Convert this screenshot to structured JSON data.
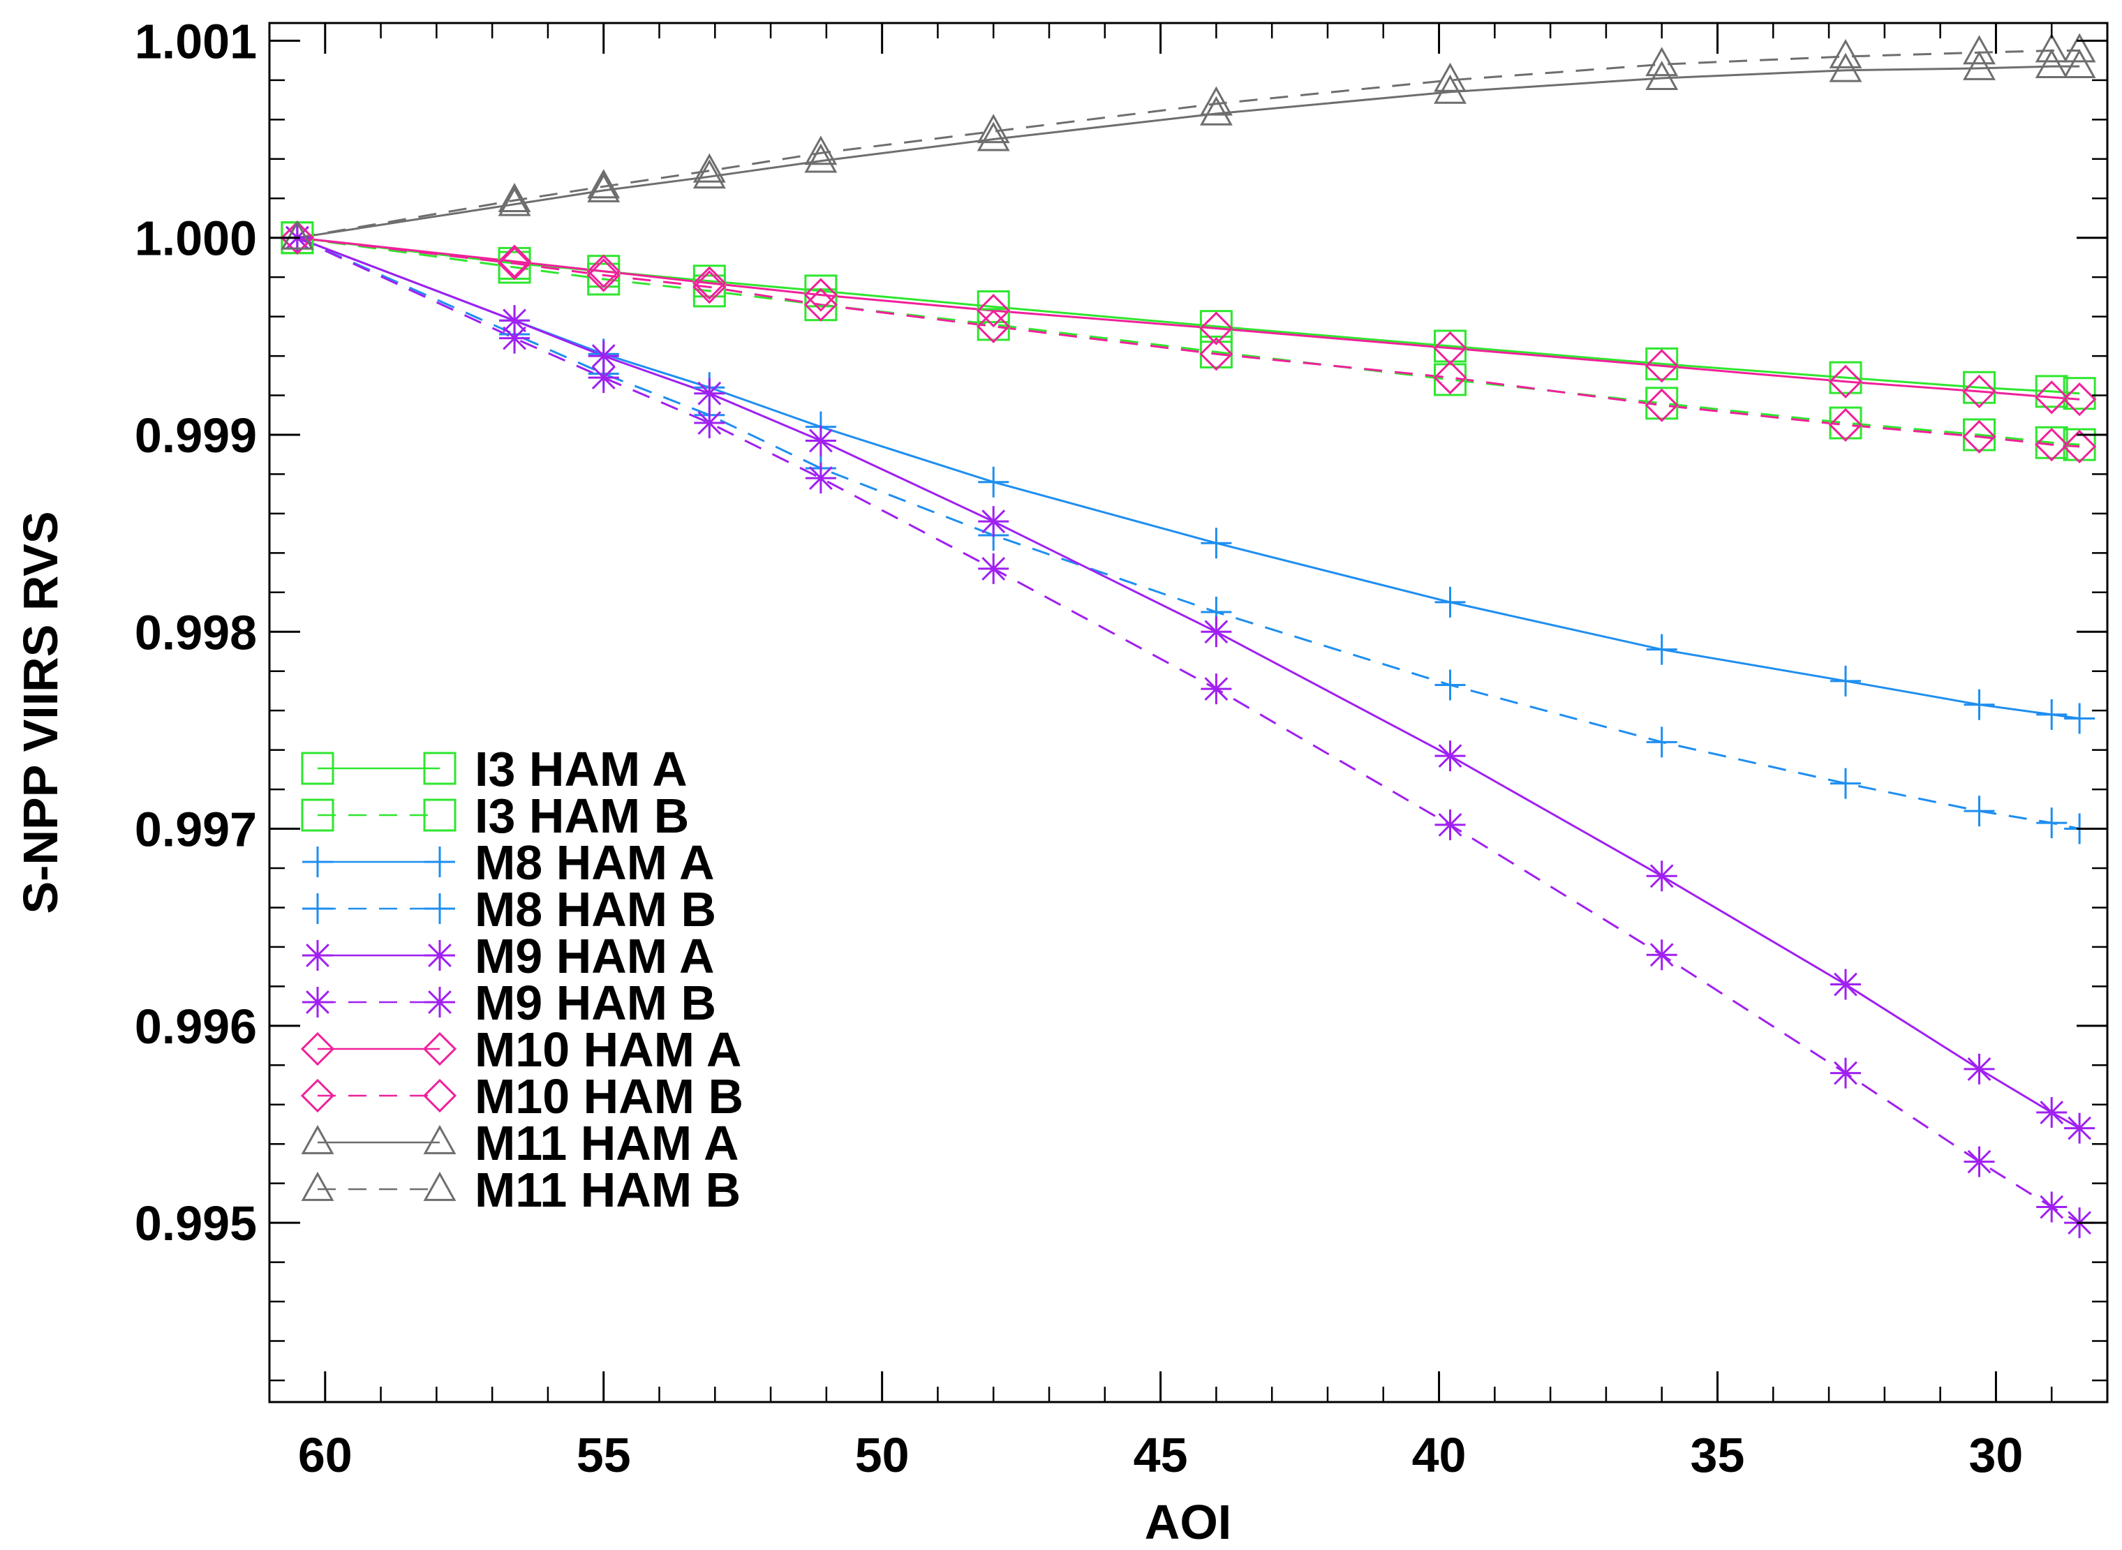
{
  "chart_data": {
    "type": "line",
    "title": "",
    "xlabel": "AOI",
    "ylabel": "S-NPP VIIRS RVS",
    "xlim": [
      61,
      28
    ],
    "ylim": [
      0.99409,
      1.00109
    ],
    "x_ticks": [
      60,
      55,
      50,
      45,
      40,
      35,
      30
    ],
    "x_tick_labels": [
      "60",
      "55",
      "50",
      "45",
      "40",
      "35",
      "30"
    ],
    "y_ticks": [
      0.995,
      0.996,
      0.997,
      0.998,
      0.999,
      1.0,
      1.001
    ],
    "y_tick_labels": [
      "0.995",
      "0.996",
      "0.997",
      "0.998",
      "0.999",
      "1.000",
      "1.001"
    ],
    "grid": false,
    "legend_position": "center-left",
    "x": [
      60.5,
      56.6,
      55.0,
      53.1,
      51.1,
      48.0,
      44.0,
      39.8,
      36.0,
      32.7,
      30.3,
      29.0,
      28.5
    ],
    "series": [
      {
        "name": "I3 HAM A",
        "color": "#2ee62e",
        "dash": "solid",
        "marker": "square",
        "values": [
          1.0,
          0.99987,
          0.99983,
          0.99978,
          0.99973,
          0.99965,
          0.99955,
          0.99945,
          0.99936,
          0.99929,
          0.99924,
          0.99922,
          0.99921
        ]
      },
      {
        "name": "I3 HAM B",
        "color": "#2ee62e",
        "dash": "dashed",
        "marker": "square",
        "values": [
          1.0,
          0.99985,
          0.99979,
          0.99973,
          0.99966,
          0.99956,
          0.99942,
          0.99928,
          0.99916,
          0.99906,
          0.999,
          0.99896,
          0.99895
        ]
      },
      {
        "name": "M8 HAM A",
        "color": "#1e8ef0",
        "dash": "solid",
        "marker": "plus",
        "values": [
          1.0,
          0.99958,
          0.99941,
          0.99924,
          0.99904,
          0.99876,
          0.99845,
          0.99815,
          0.99791,
          0.99775,
          0.99763,
          0.99758,
          0.99756
        ]
      },
      {
        "name": "M8 HAM B",
        "color": "#1e8ef0",
        "dash": "dashed",
        "marker": "plus",
        "values": [
          1.0,
          0.99951,
          0.99931,
          0.9991,
          0.99883,
          0.99849,
          0.9981,
          0.99773,
          0.99744,
          0.99723,
          0.99709,
          0.99703,
          0.997
        ]
      },
      {
        "name": "M9 HAM A",
        "color": "#a020f0",
        "dash": "solid",
        "marker": "asterisk",
        "values": [
          1.0,
          0.99958,
          0.9994,
          0.99921,
          0.99897,
          0.99856,
          0.998,
          0.99737,
          0.99676,
          0.99621,
          0.99578,
          0.99556,
          0.99548
        ]
      },
      {
        "name": "M9 HAM B",
        "color": "#a020f0",
        "dash": "dashed",
        "marker": "asterisk",
        "values": [
          1.0,
          0.99949,
          0.99929,
          0.99906,
          0.99878,
          0.99832,
          0.99771,
          0.99702,
          0.99636,
          0.99576,
          0.99531,
          0.99508,
          0.995
        ]
      },
      {
        "name": "M10 HAM A",
        "color": "#f0209a",
        "dash": "solid",
        "marker": "diamond",
        "values": [
          1.0,
          0.99988,
          0.99983,
          0.99977,
          0.99971,
          0.99963,
          0.99954,
          0.99944,
          0.99935,
          0.99927,
          0.99922,
          0.99919,
          0.99918
        ]
      },
      {
        "name": "M10 HAM B",
        "color": "#f0209a",
        "dash": "dashed",
        "marker": "diamond",
        "values": [
          1.0,
          0.99987,
          0.99981,
          0.99975,
          0.99966,
          0.99955,
          0.99941,
          0.99929,
          0.99915,
          0.99905,
          0.99899,
          0.99895,
          0.99894
        ]
      },
      {
        "name": "M11 HAM A",
        "color": "#6e6e6e",
        "dash": "solid",
        "marker": "triangle",
        "values": [
          1.0,
          1.00017,
          1.00024,
          1.00031,
          1.00039,
          1.0005,
          1.00063,
          1.00074,
          1.00081,
          1.00085,
          1.00086,
          1.00087,
          1.00087
        ]
      },
      {
        "name": "M11 HAM B",
        "color": "#6e6e6e",
        "dash": "dashed",
        "marker": "triangle",
        "values": [
          1.0,
          1.00019,
          1.00026,
          1.00034,
          1.00043,
          1.00054,
          1.00068,
          1.0008,
          1.00088,
          1.00092,
          1.00094,
          1.00095,
          1.00095
        ]
      }
    ]
  }
}
